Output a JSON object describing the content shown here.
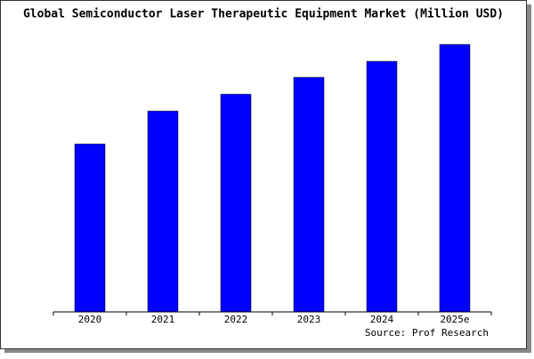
{
  "chart_data": {
    "type": "bar",
    "title": "Global Semiconductor Laser Therapeutic Equipment Market (Million USD)",
    "source": "Source: Prof Research",
    "categories": [
      "2020",
      "2021",
      "2022",
      "2023",
      "2024",
      "2025e"
    ],
    "values": [
      189,
      226,
      245,
      264,
      282,
      301
    ],
    "color": "#0000ff",
    "ylim": [
      0,
      301
    ]
  }
}
